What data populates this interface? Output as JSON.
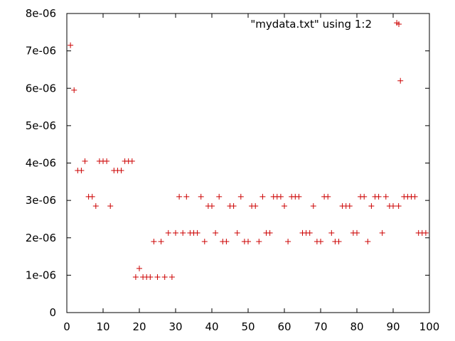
{
  "chart_data": {
    "type": "scatter",
    "title": "",
    "xlabel": "",
    "ylabel": "",
    "xlim": [
      0,
      100
    ],
    "ylim": [
      0,
      8e-06
    ],
    "x_ticks": [
      "0",
      "10",
      "20",
      "30",
      "40",
      "50",
      "60",
      "70",
      "80",
      "90",
      "100"
    ],
    "y_ticks": [
      "0",
      "1e-06",
      "2e-06",
      "3e-06",
      "4e-06",
      "5e-06",
      "6e-06",
      "7e-06",
      "8e-06"
    ],
    "grid": false,
    "legend_position": "top-right",
    "marker": "+",
    "series": [
      {
        "name": "\"mydata.txt\" using 1:2",
        "color": "#cc0000",
        "points": [
          [
            1,
            7.15e-06
          ],
          [
            2,
            5.95e-06
          ],
          [
            3,
            3.8e-06
          ],
          [
            4,
            3.8e-06
          ],
          [
            5,
            4.05e-06
          ],
          [
            6,
            3.1e-06
          ],
          [
            7,
            3.1e-06
          ],
          [
            8,
            2.85e-06
          ],
          [
            9,
            4.05e-06
          ],
          [
            10,
            4.05e-06
          ],
          [
            11,
            4.05e-06
          ],
          [
            12,
            2.85e-06
          ],
          [
            13,
            3.8e-06
          ],
          [
            14,
            3.8e-06
          ],
          [
            15,
            3.8e-06
          ],
          [
            16,
            4.05e-06
          ],
          [
            17,
            4.05e-06
          ],
          [
            18,
            4.05e-06
          ],
          [
            19,
            9.5e-07
          ],
          [
            20,
            1.18e-06
          ],
          [
            21,
            9.5e-07
          ],
          [
            22,
            9.5e-07
          ],
          [
            23,
            9.5e-07
          ],
          [
            24,
            1.9e-06
          ],
          [
            25,
            9.5e-07
          ],
          [
            26,
            1.9e-06
          ],
          [
            27,
            9.5e-07
          ],
          [
            28,
            2.13e-06
          ],
          [
            29,
            9.5e-07
          ],
          [
            30,
            2.13e-06
          ],
          [
            31,
            3.1e-06
          ],
          [
            32,
            2.13e-06
          ],
          [
            33,
            3.1e-06
          ],
          [
            34,
            2.13e-06
          ],
          [
            35,
            2.13e-06
          ],
          [
            36,
            2.13e-06
          ],
          [
            37,
            3.1e-06
          ],
          [
            38,
            1.9e-06
          ],
          [
            39,
            2.85e-06
          ],
          [
            40,
            2.85e-06
          ],
          [
            41,
            2.13e-06
          ],
          [
            42,
            3.1e-06
          ],
          [
            43,
            1.9e-06
          ],
          [
            44,
            1.9e-06
          ],
          [
            45,
            2.85e-06
          ],
          [
            46,
            2.85e-06
          ],
          [
            47,
            2.13e-06
          ],
          [
            48,
            3.1e-06
          ],
          [
            49,
            1.9e-06
          ],
          [
            50,
            1.9e-06
          ],
          [
            51,
            2.85e-06
          ],
          [
            52,
            2.85e-06
          ],
          [
            53,
            1.9e-06
          ],
          [
            54,
            3.1e-06
          ],
          [
            55,
            2.13e-06
          ],
          [
            56,
            2.13e-06
          ],
          [
            57,
            3.1e-06
          ],
          [
            58,
            3.1e-06
          ],
          [
            59,
            3.1e-06
          ],
          [
            60,
            2.85e-06
          ],
          [
            61,
            1.9e-06
          ],
          [
            62,
            3.1e-06
          ],
          [
            63,
            3.1e-06
          ],
          [
            64,
            3.1e-06
          ],
          [
            65,
            2.13e-06
          ],
          [
            66,
            2.13e-06
          ],
          [
            67,
            2.13e-06
          ],
          [
            68,
            2.85e-06
          ],
          [
            69,
            1.9e-06
          ],
          [
            70,
            1.9e-06
          ],
          [
            71,
            3.1e-06
          ],
          [
            72,
            3.1e-06
          ],
          [
            73,
            2.13e-06
          ],
          [
            74,
            1.9e-06
          ],
          [
            75,
            1.9e-06
          ],
          [
            76,
            2.85e-06
          ],
          [
            77,
            2.85e-06
          ],
          [
            78,
            2.85e-06
          ],
          [
            79,
            2.13e-06
          ],
          [
            80,
            2.13e-06
          ],
          [
            81,
            3.1e-06
          ],
          [
            82,
            3.1e-06
          ],
          [
            83,
            1.9e-06
          ],
          [
            84,
            2.85e-06
          ],
          [
            85,
            3.1e-06
          ],
          [
            86,
            3.1e-06
          ],
          [
            87,
            2.13e-06
          ],
          [
            88,
            3.1e-06
          ],
          [
            89,
            2.85e-06
          ],
          [
            90,
            2.85e-06
          ],
          [
            91,
            7.75e-06
          ],
          [
            91.5,
            2.85e-06
          ],
          [
            92,
            6.2e-06
          ],
          [
            93,
            3.1e-06
          ],
          [
            94,
            3.1e-06
          ],
          [
            95,
            3.1e-06
          ],
          [
            96,
            3.1e-06
          ],
          [
            97,
            2.13e-06
          ],
          [
            98,
            2.13e-06
          ],
          [
            99,
            2.13e-06
          ]
        ]
      }
    ]
  }
}
